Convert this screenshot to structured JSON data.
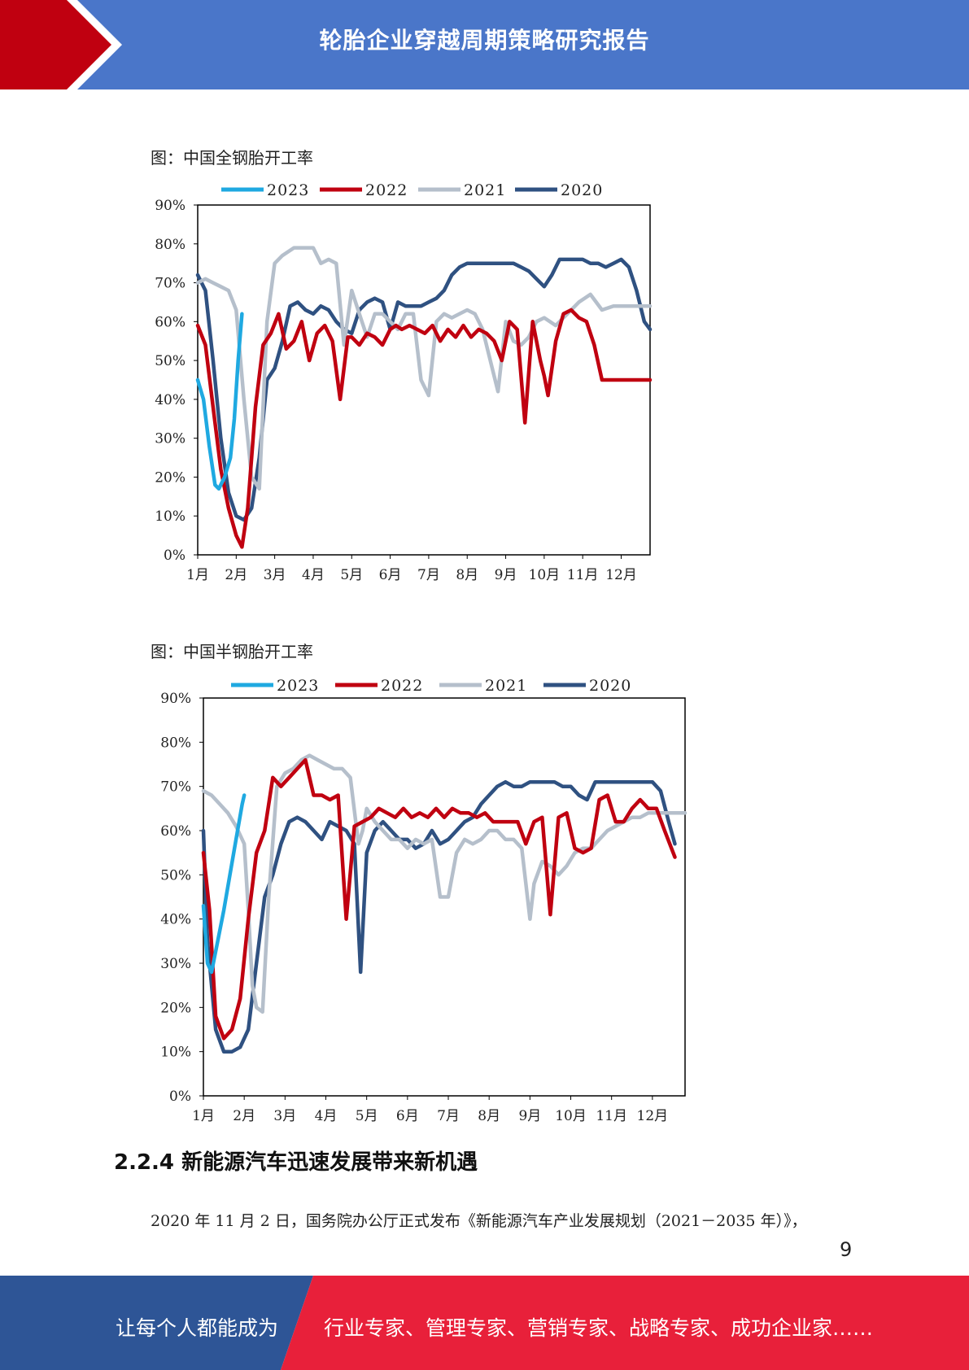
{
  "header": {
    "title": "轮胎企业穿越周期策略研究报告",
    "bg_color": "#4a76c9",
    "accent_color": "#c00010"
  },
  "charts": {
    "steel": {
      "caption": "图：中国全钢胎开工率"
    },
    "semi": {
      "caption": "图：中国半钢胎开工率"
    }
  },
  "chart_data": [
    {
      "type": "line",
      "title": "",
      "xlabel": "",
      "ylabel": "",
      "categories": [
        "1月",
        "2月",
        "3月",
        "4月",
        "5月",
        "6月",
        "7月",
        "8月",
        "9月",
        "10月",
        "11月",
        "12月"
      ],
      "yticks": [
        "0%",
        "10%",
        "20%",
        "30%",
        "40%",
        "50%",
        "60%",
        "70%",
        "80%",
        "90%"
      ],
      "ylim": [
        0,
        90
      ],
      "xlim": [
        1,
        12.75
      ],
      "legend": "top",
      "series": [
        {
          "name": "2023",
          "color": "#1fa9e1",
          "x": [
            1,
            1.15,
            1.3,
            1.45,
            1.55,
            1.7,
            1.85,
            1.95,
            2.05,
            2.15
          ],
          "y": [
            45,
            40,
            28,
            18,
            17,
            20,
            25,
            35,
            50,
            62
          ]
        },
        {
          "name": "2022",
          "color": "#c00010",
          "x": [
            1,
            1.2,
            1.4,
            1.6,
            1.8,
            2,
            2.15,
            2.3,
            2.5,
            2.7,
            2.9,
            3.1,
            3.3,
            3.5,
            3.7,
            3.9,
            4.1,
            4.3,
            4.5,
            4.7,
            4.9,
            5,
            5.2,
            5.4,
            5.6,
            5.8,
            6,
            6.15,
            6.3,
            6.5,
            6.7,
            6.9,
            7.1,
            7.3,
            7.5,
            7.7,
            7.9,
            8.1,
            8.3,
            8.5,
            8.7,
            8.9,
            9.1,
            9.3,
            9.5,
            9.7,
            9.9,
            10,
            10.1,
            10.3,
            10.5,
            10.7,
            10.9,
            11.1,
            11.3,
            11.5,
            11.7,
            11.9,
            12.1,
            12.3,
            12.5,
            12.75
          ],
          "y": [
            59,
            54,
            38,
            22,
            12,
            5,
            2,
            12,
            38,
            54,
            57,
            62,
            53,
            55,
            60,
            50,
            57,
            59,
            55,
            40,
            56,
            56,
            54,
            57,
            56,
            54,
            58,
            59,
            58,
            59,
            58,
            57,
            59,
            55,
            58,
            56,
            59,
            56,
            58,
            57,
            55,
            50,
            60,
            58,
            34,
            60,
            50,
            46,
            41,
            55,
            62,
            63,
            61,
            60,
            54,
            45,
            45,
            45,
            45,
            45,
            45,
            45
          ]
        },
        {
          "name": "2021",
          "color": "#b5bfcb",
          "x": [
            1,
            1.2,
            1.4,
            1.6,
            1.8,
            2,
            2.2,
            2.4,
            2.6,
            2.8,
            3,
            3.2,
            3.5,
            3.8,
            4,
            4.2,
            4.4,
            4.6,
            4.8,
            5,
            5.2,
            5.4,
            5.6,
            5.8,
            6,
            6.2,
            6.4,
            6.6,
            6.8,
            7,
            7.2,
            7.4,
            7.6,
            7.8,
            8,
            8.2,
            8.4,
            8.6,
            8.8,
            9,
            9.2,
            9.4,
            9.6,
            9.8,
            10,
            10.3,
            10.6,
            10.9,
            11.2,
            11.5,
            11.8,
            12.1,
            12.4,
            12.75
          ],
          "y": [
            70,
            71,
            70,
            69,
            68,
            63,
            40,
            20,
            17,
            60,
            75,
            77,
            79,
            79,
            79,
            75,
            76,
            75,
            54,
            68,
            62,
            56,
            62,
            62,
            60,
            58,
            62,
            62,
            45,
            41,
            60,
            62,
            61,
            62,
            63,
            62,
            58,
            50,
            42,
            60,
            55,
            54,
            56,
            60,
            61,
            59,
            62,
            65,
            67,
            63,
            64,
            64,
            64,
            64
          ]
        },
        {
          "name": "2020",
          "color": "#2f5181",
          "x": [
            1,
            1.2,
            1.4,
            1.6,
            1.8,
            2,
            2.2,
            2.4,
            2.6,
            2.8,
            3,
            3.2,
            3.4,
            3.6,
            3.8,
            4,
            4.2,
            4.4,
            4.6,
            4.8,
            5,
            5.2,
            5.4,
            5.6,
            5.8,
            6,
            6.2,
            6.4,
            6.6,
            6.8,
            7,
            7.2,
            7.4,
            7.6,
            7.8,
            8,
            8.2,
            8.4,
            8.6,
            8.8,
            9,
            9.2,
            9.4,
            9.6,
            9.8,
            10,
            10.2,
            10.4,
            10.6,
            10.8,
            11,
            11.2,
            11.4,
            11.6,
            11.8,
            12,
            12.2,
            12.4,
            12.6,
            12.75
          ],
          "y": [
            72,
            68,
            50,
            30,
            16,
            10,
            9,
            12,
            25,
            45,
            48,
            55,
            64,
            65,
            63,
            62,
            64,
            63,
            60,
            58,
            57,
            63,
            65,
            66,
            65,
            58,
            65,
            64,
            64,
            64,
            65,
            66,
            68,
            72,
            74,
            75,
            75,
            75,
            75,
            75,
            75,
            75,
            74,
            73,
            71,
            69,
            72,
            76,
            76,
            76,
            76,
            75,
            75,
            74,
            75,
            76,
            74,
            68,
            60,
            58
          ]
        }
      ]
    },
    {
      "type": "line",
      "title": "",
      "xlabel": "",
      "ylabel": "",
      "categories": [
        "1月",
        "2月",
        "3月",
        "4月",
        "5月",
        "6月",
        "7月",
        "8月",
        "9月",
        "10月",
        "11月",
        "12月"
      ],
      "yticks": [
        "0%",
        "10%",
        "20%",
        "30%",
        "40%",
        "50%",
        "60%",
        "70%",
        "80%",
        "90%"
      ],
      "ylim": [
        0,
        90
      ],
      "xlim": [
        1,
        12.8
      ],
      "legend": "top",
      "series": [
        {
          "name": "2023",
          "color": "#1fa9e1",
          "x": [
            1,
            1.1,
            1.2,
            1.35,
            1.5,
            1.65,
            1.8,
            1.95,
            2
          ],
          "y": [
            43,
            30,
            28,
            35,
            42,
            50,
            58,
            66,
            68
          ]
        },
        {
          "name": "2022",
          "color": "#c00010",
          "x": [
            1,
            1.15,
            1.3,
            1.5,
            1.7,
            1.9,
            2.1,
            2.3,
            2.5,
            2.7,
            2.9,
            3.1,
            3.3,
            3.5,
            3.7,
            3.9,
            4.1,
            4.3,
            4.5,
            4.7,
            4.9,
            5.1,
            5.3,
            5.5,
            5.7,
            5.9,
            6.1,
            6.3,
            6.5,
            6.7,
            6.9,
            7.1,
            7.3,
            7.5,
            7.7,
            7.9,
            8.1,
            8.3,
            8.5,
            8.7,
            8.9,
            9.1,
            9.3,
            9.5,
            9.7,
            9.9,
            10.1,
            10.3,
            10.5,
            10.7,
            10.9,
            11.1,
            11.3,
            11.5,
            11.7,
            11.9,
            12.1,
            12.3,
            12.55
          ],
          "y": [
            55,
            42,
            18,
            13,
            15,
            22,
            40,
            55,
            60,
            72,
            70,
            72,
            74,
            76,
            68,
            68,
            67,
            68,
            40,
            61,
            62,
            63,
            65,
            64,
            63,
            65,
            63,
            64,
            63,
            65,
            63,
            65,
            64,
            64,
            63,
            64,
            62,
            62,
            62,
            62,
            57,
            62,
            63,
            41,
            63,
            64,
            56,
            55,
            56,
            67,
            68,
            62,
            62,
            65,
            67,
            65,
            65,
            60,
            54
          ]
        },
        {
          "name": "2021",
          "color": "#b5bfcb",
          "x": [
            1,
            1.2,
            1.4,
            1.6,
            1.8,
            2,
            2.1,
            2.2,
            2.3,
            2.45,
            2.6,
            2.8,
            3,
            3.2,
            3.4,
            3.6,
            3.8,
            4,
            4.2,
            4.4,
            4.6,
            4.8,
            4.9,
            5,
            5.2,
            5.4,
            5.6,
            5.8,
            6,
            6.2,
            6.4,
            6.6,
            6.8,
            7,
            7.2,
            7.4,
            7.6,
            7.8,
            8,
            8.2,
            8.4,
            8.6,
            8.8,
            9,
            9.1,
            9.3,
            9.5,
            9.7,
            9.9,
            10.1,
            10.3,
            10.5,
            10.7,
            10.9,
            11.1,
            11.3,
            11.5,
            11.7,
            11.9,
            12.1,
            12.3,
            12.55,
            12.8
          ],
          "y": [
            69,
            68,
            66,
            64,
            61,
            57,
            42,
            25,
            20,
            19,
            45,
            70,
            73,
            74,
            76,
            77,
            76,
            75,
            74,
            74,
            72,
            57,
            60,
            65,
            62,
            60,
            58,
            58,
            56,
            58,
            57,
            58,
            45,
            45,
            55,
            58,
            57,
            58,
            60,
            60,
            58,
            58,
            56,
            40,
            48,
            53,
            52,
            50,
            52,
            55,
            56,
            56,
            58,
            60,
            61,
            62,
            63,
            63,
            64,
            64,
            64,
            64,
            64
          ]
        },
        {
          "name": "2020",
          "color": "#2f5181",
          "x": [
            1,
            1.1,
            1.3,
            1.5,
            1.7,
            1.9,
            2.1,
            2.3,
            2.5,
            2.7,
            2.9,
            3.1,
            3.3,
            3.5,
            3.7,
            3.9,
            4.1,
            4.3,
            4.5,
            4.7,
            4.85,
            5,
            5.2,
            5.4,
            5.6,
            5.8,
            6,
            6.2,
            6.4,
            6.6,
            6.8,
            7,
            7.2,
            7.4,
            7.6,
            7.8,
            8,
            8.2,
            8.4,
            8.6,
            8.8,
            9,
            9.2,
            9.4,
            9.6,
            9.8,
            10,
            10.2,
            10.4,
            10.6,
            10.8,
            11,
            11.2,
            11.4,
            11.6,
            11.8,
            12,
            12.2,
            12.4,
            12.55
          ],
          "y": [
            60,
            35,
            15,
            10,
            10,
            11,
            15,
            30,
            45,
            50,
            57,
            62,
            63,
            62,
            60,
            58,
            62,
            61,
            60,
            57,
            28,
            55,
            60,
            62,
            60,
            58,
            58,
            56,
            57,
            60,
            57,
            58,
            60,
            62,
            63,
            66,
            68,
            70,
            71,
            70,
            70,
            71,
            71,
            71,
            71,
            70,
            70,
            68,
            67,
            71,
            71,
            71,
            71,
            71,
            71,
            71,
            71,
            69,
            62,
            57
          ]
        }
      ]
    }
  ],
  "section": {
    "heading": "2.2.4 新能源汽车迅速发展带来新机遇",
    "paragraph": "2020 年 11 月 2 日，国务院办公厅正式发布《新能源汽车产业发展规划（2021－2035 年）》，"
  },
  "page_number": "9",
  "footer": {
    "left_text": "让每个人都能成为",
    "right_text": "行业专家、管理专家、营销专家、战略专家、成功企业家……",
    "left_color": "#2e5596",
    "right_color": "#e8203a"
  }
}
